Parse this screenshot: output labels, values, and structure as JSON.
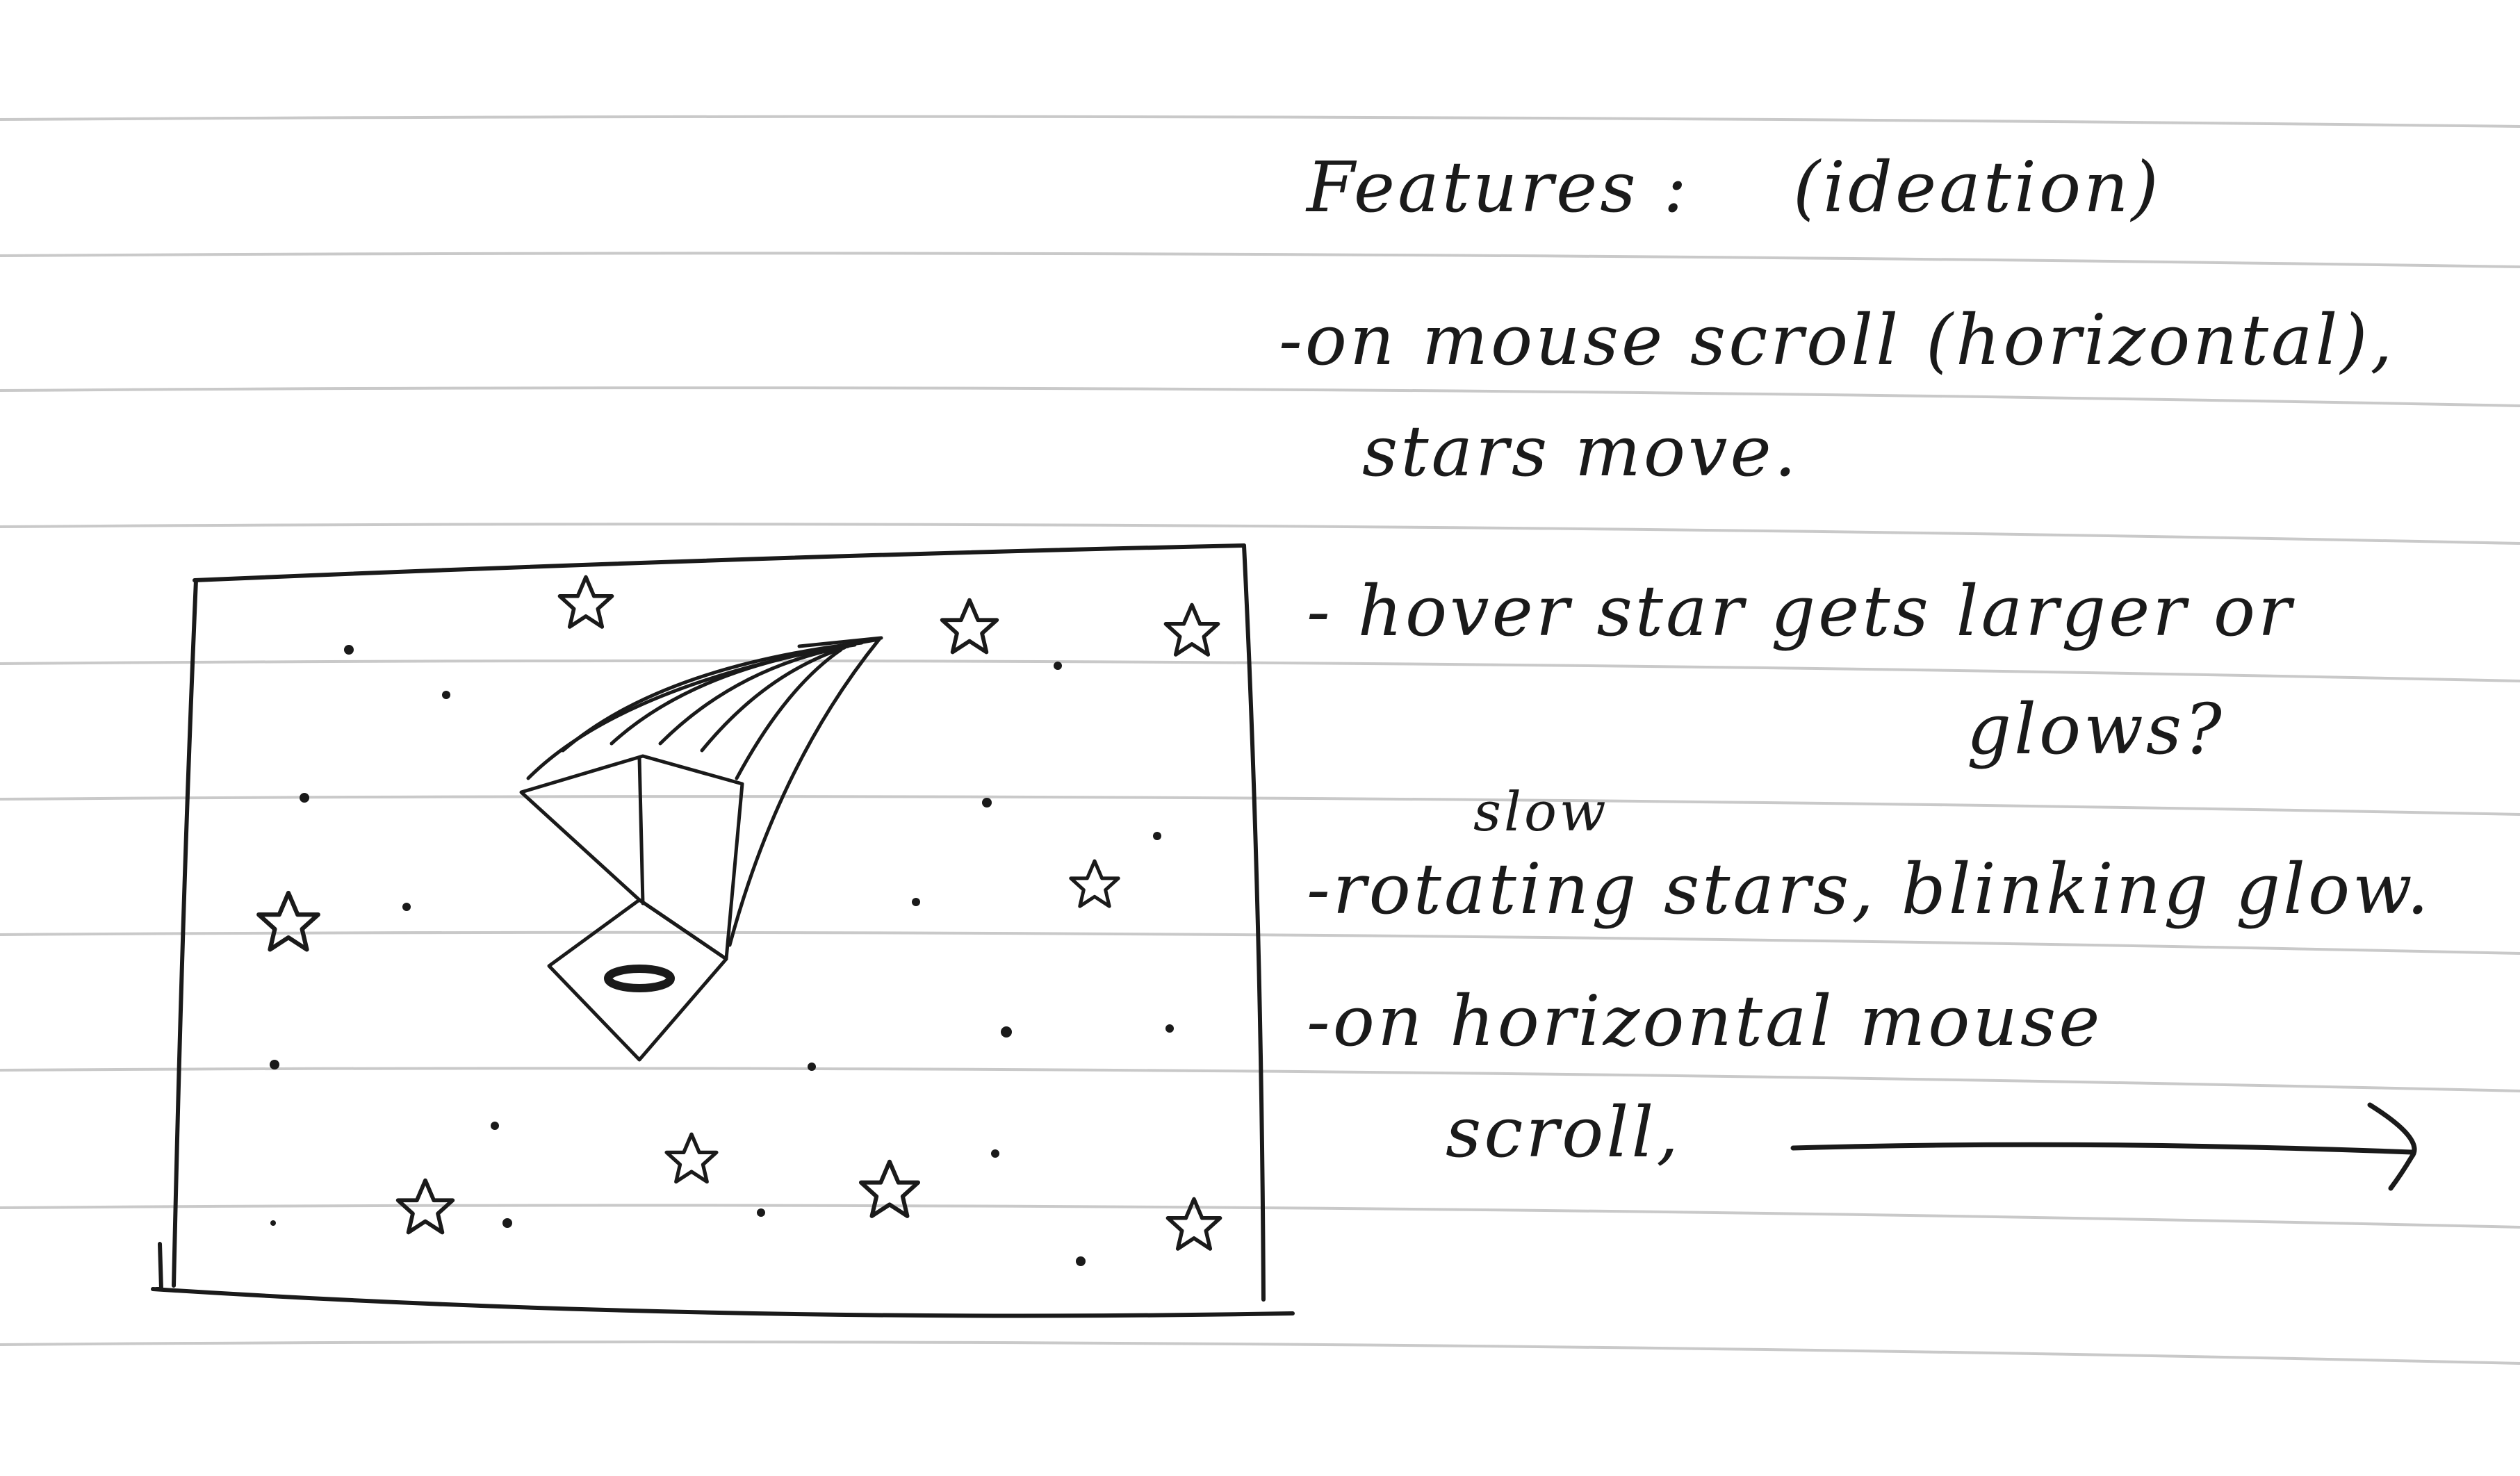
{
  "notes": {
    "title": "Features :",
    "subtitle": "(ideation)",
    "item1_line1": "-on mouse scroll (horizontal),",
    "item1_line2": "stars move.",
    "item2_line1": "- hover star gets larger or",
    "item2_line2": "glows?",
    "item3_above": "slow",
    "item3_line1": "-rotating stars, blinking glow.",
    "item4_line1": "-on horizontal mouse",
    "item4_line2": "scroll,"
  },
  "colors": {
    "paper": "#ffffff",
    "rule_line": "#c9c9c9",
    "ink": "#1a1a1a"
  },
  "sketch": {
    "subject": "night sky with shooting star",
    "icons": [
      "star-icon",
      "shooting-star-icon",
      "arrow-right-icon"
    ]
  }
}
